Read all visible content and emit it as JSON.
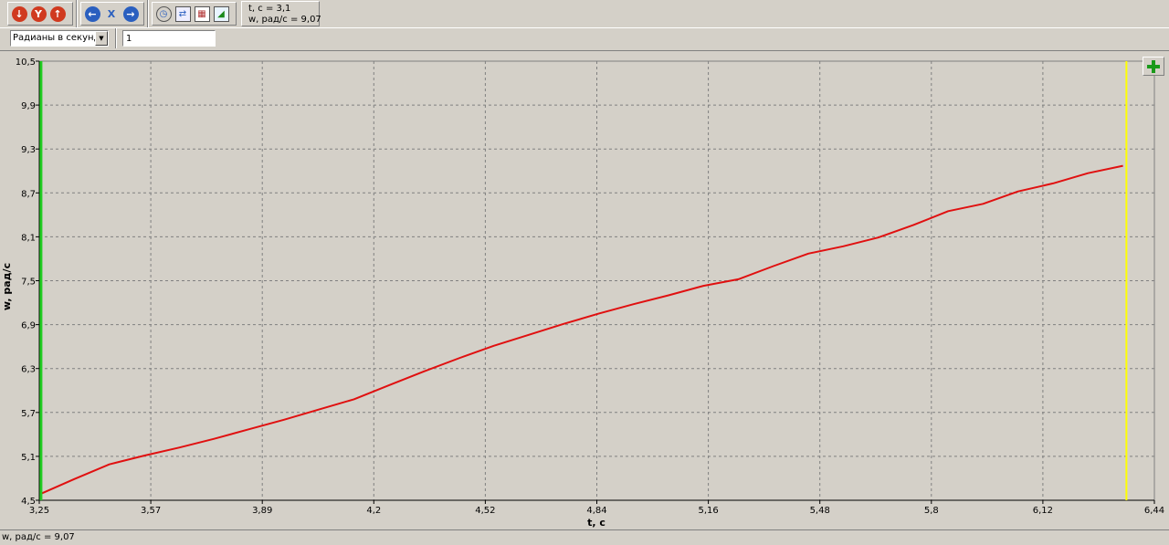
{
  "toolbar": {
    "group1": [
      {
        "icon": "down-arrow-icon",
        "glyph": "↓",
        "color": "#d03a1f"
      },
      {
        "icon": "y-axis-icon",
        "glyph": "Y",
        "color": "#d03a1f"
      },
      {
        "icon": "up-arrow-icon",
        "glyph": "↑",
        "color": "#d03a1f"
      }
    ],
    "group2": [
      {
        "icon": "left-arrow-icon",
        "glyph": "←",
        "color": "#2a5fbf"
      },
      {
        "icon": "x-axis-icon",
        "glyph": "X",
        "color": "#2a5fbf"
      },
      {
        "icon": "right-arrow-icon",
        "glyph": "→",
        "color": "#2a5fbf"
      }
    ],
    "group3": [
      {
        "icon": "stopwatch-icon",
        "glyph": "◷"
      },
      {
        "icon": "export-icon",
        "glyph": "⇄"
      },
      {
        "icon": "table-icon",
        "glyph": "▦"
      },
      {
        "icon": "image-icon",
        "glyph": "◢"
      }
    ],
    "readout_line1": "t, c = 3,1",
    "readout_line2": "w, рад/с = 9,07"
  },
  "controls": {
    "unit_select_value": "Радианы в секунд",
    "step_input_value": "1"
  },
  "status": {
    "text": "w, рад/с = 9,07"
  },
  "colors": {
    "series": "#e01010",
    "left_cursor": "#22cc22",
    "right_cursor": "#ffff00",
    "grid": "#808080",
    "add_icon": "#1a9a1a"
  },
  "chart_data": {
    "type": "line",
    "xlabel": "t, c",
    "ylabel": "w, рад/с",
    "xlim": [
      3.25,
      6.44
    ],
    "ylim": [
      4.5,
      10.5
    ],
    "x_ticks": [
      "3,25",
      "3,57",
      "3,89",
      "4,2",
      "4,52",
      "4,84",
      "5,16",
      "5,48",
      "5,8",
      "6,12",
      "6,44"
    ],
    "y_ticks": [
      "4,5",
      "5,1",
      "5,7",
      "6,3",
      "6,9",
      "7,5",
      "8,1",
      "8,7",
      "9,3",
      "9,9",
      "10,5"
    ],
    "grid": true,
    "cursors": {
      "left_x": 3.255,
      "right_x": 6.36
    },
    "series": [
      {
        "x": [
          3.255,
          3.35,
          3.45,
          3.55,
          3.65,
          3.75,
          3.85,
          3.95,
          4.05,
          4.15,
          4.25,
          4.35,
          4.45,
          4.55,
          4.65,
          4.75,
          4.85,
          4.95,
          5.05,
          5.15,
          5.25,
          5.35,
          5.45,
          5.55,
          5.65,
          5.75,
          5.85,
          5.95,
          6.05,
          6.15,
          6.25,
          6.35
        ],
        "y": [
          4.59,
          4.79,
          4.99,
          5.11,
          5.22,
          5.34,
          5.47,
          5.6,
          5.74,
          5.88,
          6.07,
          6.26,
          6.44,
          6.61,
          6.76,
          6.91,
          7.05,
          7.18,
          7.3,
          7.43,
          7.52,
          7.7,
          7.87,
          7.97,
          8.09,
          8.26,
          8.45,
          8.55,
          8.72,
          8.83,
          8.97,
          9.07
        ]
      }
    ]
  }
}
